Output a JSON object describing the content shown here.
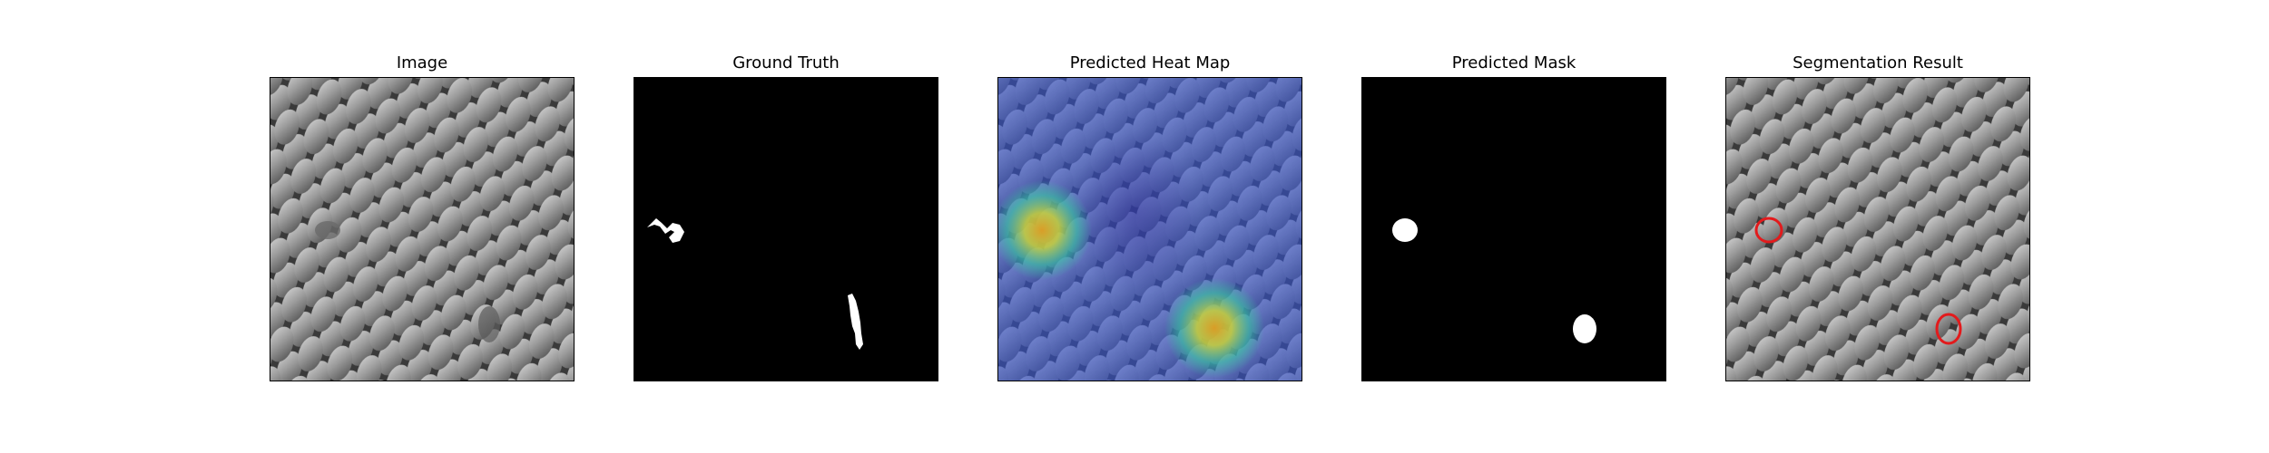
{
  "panels": [
    {
      "key": "image",
      "title": "Image"
    },
    {
      "key": "ground_truth",
      "title": "Ground Truth"
    },
    {
      "key": "heat_map",
      "title": "Predicted Heat Map"
    },
    {
      "key": "mask",
      "title": "Predicted Mask"
    },
    {
      "key": "segmentation",
      "title": "Segmentation Result"
    }
  ],
  "colors": {
    "texture_cell": "#9a9a9a",
    "texture_groove": "#333333",
    "mask_background": "#000000",
    "mask_foreground": "#ffffff",
    "heat_low": "#3b3fd0",
    "heat_mid": "#2ec9a6",
    "heat_high": "#d7b21f",
    "contour": "#e31a1c"
  }
}
